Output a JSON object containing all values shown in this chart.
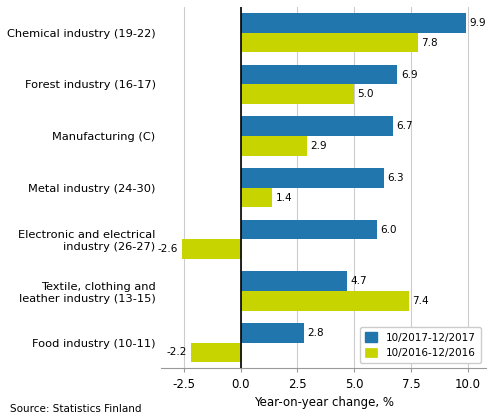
{
  "categories": [
    "Chemical industry (19-22)",
    "Forest industry (16-17)",
    "Manufacturing (C)",
    "Metal industry (24-30)",
    "Electronic and electrical\nindustry (26-27)",
    "Textile, clothing and\nleather industry (13-15)",
    "Food industry (10-11)"
  ],
  "series_2017": [
    9.9,
    6.9,
    6.7,
    6.3,
    6.0,
    4.7,
    2.8
  ],
  "series_2016": [
    7.8,
    5.0,
    2.9,
    1.4,
    -2.6,
    7.4,
    -2.2
  ],
  "color_2017": "#2176ae",
  "color_2016": "#c8d400",
  "legend_2017": "10/2017-12/2017",
  "legend_2016": "10/2016-12/2016",
  "xlabel": "Year-on-year change, %",
  "xlim": [
    -3.5,
    10.8
  ],
  "xticks": [
    -2.5,
    0.0,
    2.5,
    5.0,
    7.5,
    10.0
  ],
  "xtick_labels": [
    "-2.5",
    "0.0",
    "2.5",
    "5.0",
    "7.5",
    "10.0"
  ],
  "source": "Source: Statistics Finland",
  "bar_height": 0.38
}
